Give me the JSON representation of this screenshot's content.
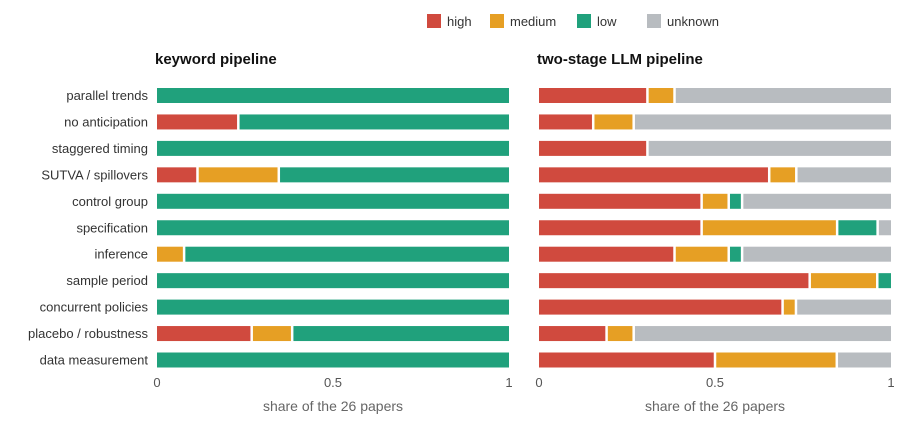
{
  "chart_data": {
    "type": "bar",
    "stacked": true,
    "orientation": "horizontal",
    "legend": {
      "placement": "top-right",
      "entries": [
        {
          "name": "high",
          "color": "#d04a3e"
        },
        {
          "name": "medium",
          "color": "#e69f24"
        },
        {
          "name": "low",
          "color": "#20a17c"
        },
        {
          "name": "unknown",
          "color": "#b8bcc0"
        }
      ]
    },
    "categories": [
      "parallel trends",
      "no anticipation",
      "staggered timing",
      "SUTVA / spillovers",
      "control group",
      "specification",
      "inference",
      "sample period",
      "concurrent policies",
      "placebo / robustness",
      "data measurement"
    ],
    "xlim": [
      0,
      1
    ],
    "xticks": [
      {
        "value": 0,
        "label": "0"
      },
      {
        "value": 0.5,
        "label": "0.5"
      },
      {
        "value": 1,
        "label": "1"
      }
    ],
    "grid": false,
    "panels": [
      {
        "title": "keyword pipeline",
        "xlabel": "share of the 26 papers",
        "series": [
          {
            "name": "high",
            "values": [
              0,
              0.231,
              0,
              0.115,
              0,
              0,
              0,
              0,
              0,
              0.269,
              0
            ]
          },
          {
            "name": "medium",
            "values": [
              0,
              0,
              0,
              0.231,
              0,
              0,
              0.077,
              0,
              0,
              0.115,
              0
            ]
          },
          {
            "name": "low",
            "values": [
              1,
              0.769,
              1,
              0.654,
              1,
              1,
              0.923,
              1,
              1,
              0.616,
              1
            ]
          },
          {
            "name": "unknown",
            "values": [
              0,
              0,
              0,
              0,
              0,
              0,
              0,
              0,
              0,
              0,
              0
            ]
          }
        ]
      },
      {
        "title": "two-stage LLM pipeline",
        "xlabel": "share of the 26 papers",
        "series": [
          {
            "name": "high",
            "values": [
              0.308,
              0.154,
              0.308,
              0.654,
              0.462,
              0.462,
              0.385,
              0.769,
              0.692,
              0.192,
              0.5
            ]
          },
          {
            "name": "medium",
            "values": [
              0.077,
              0.115,
              0,
              0.077,
              0.077,
              0.385,
              0.154,
              0.192,
              0.038,
              0.077,
              0.346
            ]
          },
          {
            "name": "low",
            "values": [
              0,
              0,
              0,
              0,
              0.038,
              0.115,
              0.038,
              0.039,
              0,
              0,
              0
            ]
          },
          {
            "name": "unknown",
            "values": [
              0.615,
              0.731,
              0.692,
              0.269,
              0.423,
              0.038,
              0.423,
              0,
              0.27,
              0.731,
              0.154
            ]
          }
        ]
      }
    ]
  }
}
